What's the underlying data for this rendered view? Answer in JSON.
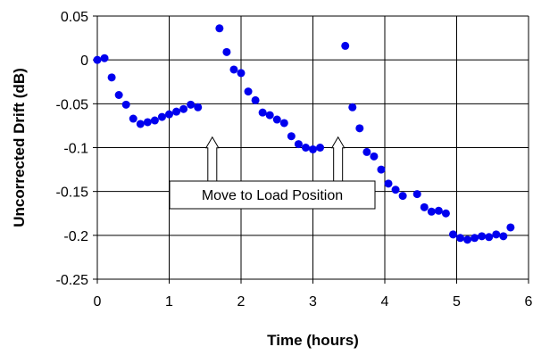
{
  "chart_data": {
    "type": "scatter",
    "xlabel": "Time (hours)",
    "ylabel": "Uncorrected Drift (dB)",
    "xlim": [
      0,
      6
    ],
    "ylim": [
      -0.25,
      0.05
    ],
    "x_ticks": [
      "0",
      "1",
      "2",
      "3",
      "4",
      "5",
      "6"
    ],
    "y_ticks": [
      "0.05",
      "0",
      "-0.05",
      "-0.1",
      "-0.15",
      "-0.2",
      "-0.25"
    ],
    "grid": true,
    "marker_color": "#0000ee",
    "annotation": {
      "text": "Move to Load Position",
      "arrows_at": [
        {
          "x": 1.6,
          "y": -0.088
        },
        {
          "x": 3.35,
          "y": -0.088
        }
      ]
    },
    "series": [
      {
        "points": [
          [
            0.0,
            0.0
          ],
          [
            0.1,
            0.002
          ],
          [
            0.2,
            -0.02
          ],
          [
            0.3,
            -0.04
          ],
          [
            0.4,
            -0.051
          ],
          [
            0.5,
            -0.067
          ],
          [
            0.6,
            -0.073
          ],
          [
            0.7,
            -0.071
          ],
          [
            0.8,
            -0.069
          ],
          [
            0.9,
            -0.065
          ],
          [
            1.0,
            -0.062
          ],
          [
            1.1,
            -0.059
          ],
          [
            1.2,
            -0.056
          ],
          [
            1.3,
            -0.051
          ],
          [
            1.4,
            -0.054
          ],
          [
            1.7,
            0.036
          ],
          [
            1.8,
            0.009
          ],
          [
            1.9,
            -0.011
          ],
          [
            2.0,
            -0.015
          ],
          [
            2.1,
            -0.036
          ],
          [
            2.2,
            -0.046
          ],
          [
            2.3,
            -0.06
          ],
          [
            2.4,
            -0.063
          ],
          [
            2.5,
            -0.068
          ],
          [
            2.6,
            -0.072
          ],
          [
            2.7,
            -0.087
          ],
          [
            2.8,
            -0.096
          ],
          [
            2.9,
            -0.1
          ],
          [
            3.0,
            -0.102
          ],
          [
            3.1,
            -0.1
          ],
          [
            3.45,
            0.016
          ],
          [
            3.55,
            -0.054
          ],
          [
            3.65,
            -0.078
          ],
          [
            3.75,
            -0.105
          ],
          [
            3.85,
            -0.11
          ],
          [
            3.95,
            -0.125
          ],
          [
            4.05,
            -0.141
          ],
          [
            4.15,
            -0.148
          ],
          [
            4.25,
            -0.155
          ],
          [
            4.45,
            -0.153
          ],
          [
            4.55,
            -0.168
          ],
          [
            4.65,
            -0.173
          ],
          [
            4.75,
            -0.172
          ],
          [
            4.85,
            -0.175
          ],
          [
            4.95,
            -0.199
          ],
          [
            5.05,
            -0.203
          ],
          [
            5.15,
            -0.205
          ],
          [
            5.25,
            -0.203
          ],
          [
            5.35,
            -0.201
          ],
          [
            5.45,
            -0.202
          ],
          [
            5.55,
            -0.199
          ],
          [
            5.65,
            -0.201
          ],
          [
            5.75,
            -0.191
          ]
        ]
      }
    ]
  }
}
